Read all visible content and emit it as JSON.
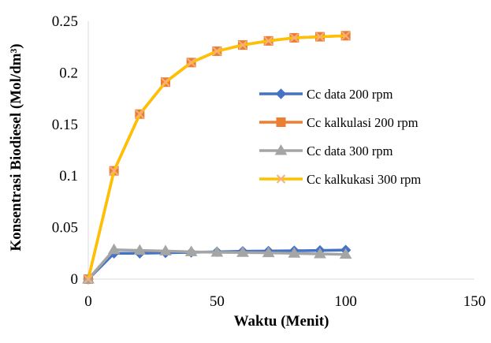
{
  "chart_data": {
    "type": "line",
    "title": "",
    "xlabel": "Waktu (Menit)",
    "ylabel": "Konsentrasi Biodiesel (Mol/dm³)",
    "xlim": [
      0,
      150
    ],
    "ylim": [
      0,
      0.25
    ],
    "x_ticks": [
      0,
      50,
      100,
      150
    ],
    "y_ticks": [
      0,
      0.05,
      0.1,
      0.15,
      0.2,
      0.25
    ],
    "x_tick_labels": [
      "0",
      "50",
      "100",
      "150"
    ],
    "y_tick_labels": [
      "0",
      "0.05",
      "0.1",
      "0.15",
      "0.2",
      "0.25"
    ],
    "grid": false,
    "legend_position": "right",
    "x": [
      0,
      10,
      20,
      30,
      40,
      50,
      60,
      70,
      80,
      90,
      100
    ],
    "series": [
      {
        "name": "Cc data 200 rpm",
        "color": "#4472C4",
        "marker": "diamond",
        "values": [
          0,
          0.025,
          0.025,
          0.0255,
          0.026,
          0.0265,
          0.027,
          0.0272,
          0.0275,
          0.0278,
          0.0282
        ]
      },
      {
        "name": "Cc kalkulasi 200 rpm",
        "color": "#ED7D31",
        "marker": "square",
        "values": [
          0,
          0.105,
          0.16,
          0.191,
          0.21,
          0.221,
          0.227,
          0.231,
          0.234,
          0.235,
          0.236
        ]
      },
      {
        "name": "Cc data 300 rpm",
        "color": "#A5A5A5",
        "marker": "triangle",
        "values": [
          0,
          0.0285,
          0.0278,
          0.0272,
          0.0265,
          0.026,
          0.0258,
          0.0255,
          0.025,
          0.0245,
          0.024
        ]
      },
      {
        "name": "Cc kalkukasi 300 rpm",
        "color": "#FFC000",
        "marker": "x",
        "values": [
          0,
          0.105,
          0.16,
          0.191,
          0.21,
          0.221,
          0.227,
          0.231,
          0.234,
          0.235,
          0.236
        ]
      }
    ]
  }
}
